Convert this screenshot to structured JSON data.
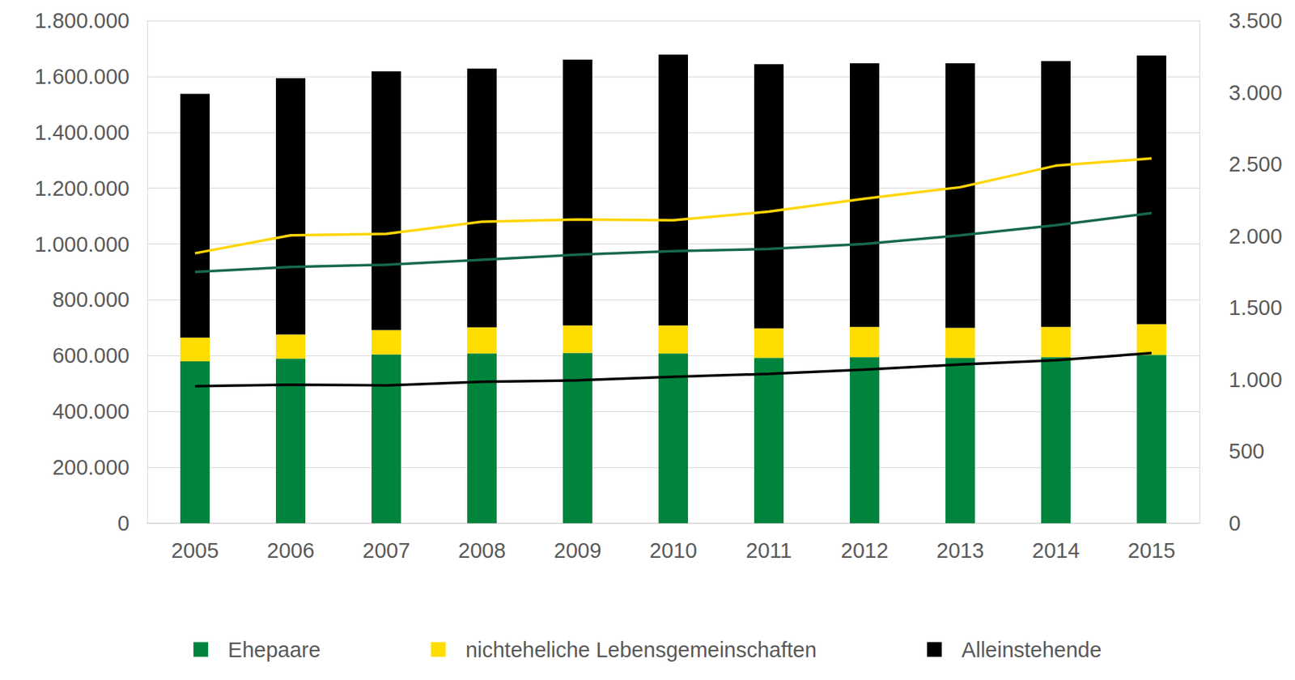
{
  "chart_data": {
    "type": "bar",
    "stacked": true,
    "grid": true,
    "legend": "bottom",
    "categories": [
      "2005",
      "2006",
      "2007",
      "2008",
      "2009",
      "2010",
      "2011",
      "2012",
      "2013",
      "2014",
      "2015"
    ],
    "ylim": [
      0,
      1800000
    ],
    "yticks": [
      0,
      {
        "value": 200000,
        "label": "200.000"
      },
      {
        "value": 400000,
        "label": "400.000"
      },
      {
        "value": 600000,
        "label": "600.000"
      },
      {
        "value": 800000,
        "label": "800.000"
      },
      {
        "value": 1000000,
        "label": "1.000.000"
      },
      {
        "value": 1200000,
        "label": "1.200.000"
      },
      {
        "value": 1400000,
        "label": "1.400.000"
      },
      {
        "value": 1600000,
        "label": "1.600.000"
      },
      {
        "value": 1800000,
        "label": "1.800.000"
      }
    ],
    "y2lim": [
      0,
      3500
    ],
    "y2ticks": [
      0,
      500,
      {
        "value": 1000,
        "label": "1.000"
      },
      {
        "value": 1500,
        "label": "1.500"
      },
      {
        "value": 2000,
        "label": "2.000"
      },
      {
        "value": 2500,
        "label": "2.500"
      },
      {
        "value": 3000,
        "label": "3.000"
      },
      {
        "value": 3500,
        "label": "3.500"
      }
    ],
    "series": [
      {
        "name": "Ehepaare",
        "type": "bar",
        "color": "#00843d",
        "values": [
          580000,
          590000,
          605000,
          608000,
          610000,
          608000,
          592000,
          595000,
          592000,
          595000,
          603000
        ]
      },
      {
        "name": "nichteheliche Lebensgemeinschaften",
        "type": "bar",
        "color": "#ffdd00",
        "values": [
          85000,
          86000,
          87000,
          94000,
          98000,
          100000,
          106000,
          108000,
          108000,
          108000,
          110000
        ]
      },
      {
        "name": "Alleinstehende",
        "type": "bar",
        "color": "#000000",
        "values": [
          873000,
          918000,
          926000,
          926000,
          952000,
          970000,
          946000,
          944000,
          947000,
          952000,
          962000
        ]
      },
      {
        "name": "nichteheliche Lebensgemeinschaften",
        "type": "line",
        "axis": "y2",
        "color": "#ffd500",
        "values": [
          1880,
          2005,
          2015,
          2100,
          2115,
          2110,
          2170,
          2260,
          2340,
          2490,
          2540
        ]
      },
      {
        "name": "Ehepaare",
        "type": "line",
        "axis": "y2",
        "color": "#17694c",
        "values": [
          1750,
          1785,
          1800,
          1835,
          1870,
          1895,
          1910,
          1945,
          2005,
          2075,
          2160
        ]
      },
      {
        "name": "Alleinstehende",
        "type": "line",
        "axis": "y2",
        "color": "#000000",
        "values": [
          955,
          965,
          960,
          985,
          995,
          1020,
          1040,
          1070,
          1105,
          1135,
          1185
        ]
      }
    ]
  }
}
